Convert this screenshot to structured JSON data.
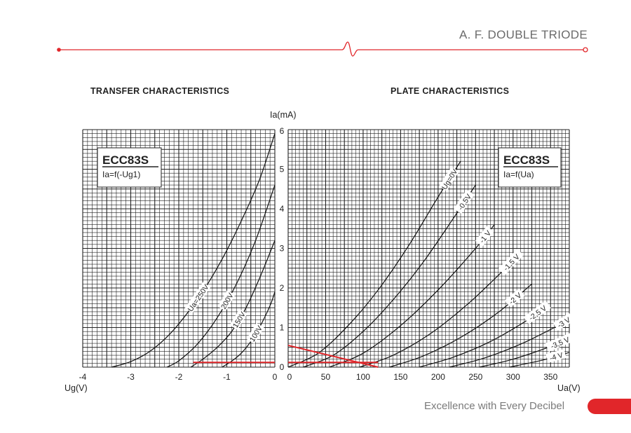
{
  "header": {
    "title": "A. F. DOUBLE TRIODE"
  },
  "footer": {
    "slogan": "Excellence with Every Decibel"
  },
  "colors": {
    "accent": "#e1262a",
    "grid": "#222222",
    "curve": "#111111"
  },
  "chart_data": [
    {
      "type": "line",
      "title": "TRANSFER CHARACTERISTICS",
      "xlabel": "Ug(V)",
      "ylabel": "Ia(mA)",
      "xlim": [
        -4,
        0
      ],
      "ylim": [
        0,
        6
      ],
      "xticks": [
        -4,
        -3,
        -2,
        -1,
        0
      ],
      "yticks": [
        0,
        1,
        2,
        3,
        4,
        5,
        6
      ],
      "box": {
        "title": "ECC83S",
        "subtitle": "Ia=f(-Ug1)"
      },
      "series": [
        {
          "name": "Ua=250V",
          "x": [
            -3.4,
            -3.0,
            -2.6,
            -2.2,
            -1.8,
            -1.4,
            -1.0,
            -0.6,
            -0.3,
            0
          ],
          "y": [
            0,
            0.14,
            0.4,
            0.82,
            1.4,
            2.1,
            2.95,
            3.95,
            4.8,
            5.9
          ]
        },
        {
          "name": "200V",
          "x": [
            -2.25,
            -2.0,
            -1.6,
            -1.2,
            -0.8,
            -0.4,
            0
          ],
          "y": [
            0,
            0.16,
            0.6,
            1.25,
            2.1,
            3.2,
            4.6
          ]
        },
        {
          "name": "150V",
          "x": [
            -1.75,
            -1.5,
            -1.2,
            -0.9,
            -0.6,
            -0.3,
            0
          ],
          "y": [
            0,
            0.2,
            0.5,
            0.9,
            1.5,
            2.3,
            3.2
          ]
        },
        {
          "name": "100V",
          "x": [
            -1.1,
            -0.9,
            -0.7,
            -0.5,
            -0.3,
            -0.1,
            0
          ],
          "y": [
            0,
            0.15,
            0.35,
            0.65,
            1.05,
            1.55,
            1.9
          ]
        }
      ],
      "annotations": [
        {
          "type": "line",
          "color": "#e1262a",
          "x": [
            -1.7,
            0
          ],
          "y": [
            0.12,
            0.12
          ]
        }
      ]
    },
    {
      "type": "line",
      "title": "PLATE CHARACTERISTICS",
      "xlabel": "Ua(V)",
      "ylabel": "Ia(mA)",
      "xlim": [
        0,
        375
      ],
      "ylim": [
        0,
        6
      ],
      "xticks": [
        0,
        50,
        100,
        150,
        200,
        250,
        300,
        350
      ],
      "yticks": [
        0,
        1,
        2,
        3,
        4,
        5,
        6
      ],
      "box": {
        "title": "ECC83S",
        "subtitle": "Ia=f(Ua)"
      },
      "series": [
        {
          "name": "Ug=0V",
          "x": [
            0,
            40,
            80,
            120,
            160,
            200,
            230
          ],
          "y": [
            0,
            0.35,
            1.05,
            1.95,
            3.05,
            4.3,
            5.2
          ]
        },
        {
          "name": "-0,5V",
          "x": [
            20,
            60,
            100,
            140,
            180,
            220,
            250
          ],
          "y": [
            0,
            0.3,
            0.9,
            1.7,
            2.65,
            3.75,
            4.6
          ]
        },
        {
          "name": "-1 V",
          "x": [
            55,
            100,
            150,
            200,
            250,
            275
          ],
          "y": [
            0,
            0.35,
            1.05,
            1.95,
            3.0,
            3.6
          ]
        },
        {
          "name": "-1,5 V",
          "x": [
            95,
            140,
            190,
            240,
            290,
            305
          ],
          "y": [
            0,
            0.3,
            0.85,
            1.6,
            2.5,
            2.8
          ]
        },
        {
          "name": "-2 V",
          "x": [
            135,
            180,
            230,
            280,
            325
          ],
          "y": [
            0,
            0.28,
            0.75,
            1.38,
            2.1
          ]
        },
        {
          "name": "-2,5 V",
          "x": [
            175,
            220,
            270,
            320,
            345
          ],
          "y": [
            0,
            0.25,
            0.65,
            1.2,
            1.55
          ]
        },
        {
          "name": "-3 V",
          "x": [
            215,
            260,
            310,
            360,
            375
          ],
          "y": [
            0,
            0.22,
            0.58,
            1.05,
            1.22
          ]
        },
        {
          "name": "-3,5 V",
          "x": [
            255,
            300,
            350,
            375
          ],
          "y": [
            0,
            0.2,
            0.52,
            0.72
          ]
        },
        {
          "name": "-4 V",
          "x": [
            295,
            340,
            375
          ],
          "y": [
            0,
            0.18,
            0.37
          ]
        }
      ],
      "annotations": [
        {
          "type": "line",
          "color": "#e1262a",
          "x": [
            0,
            120
          ],
          "y": [
            0.55,
            0
          ]
        },
        {
          "type": "line",
          "color": "#e1262a",
          "x": [
            0,
            120
          ],
          "y": [
            0.12,
            0.12
          ]
        }
      ]
    }
  ]
}
